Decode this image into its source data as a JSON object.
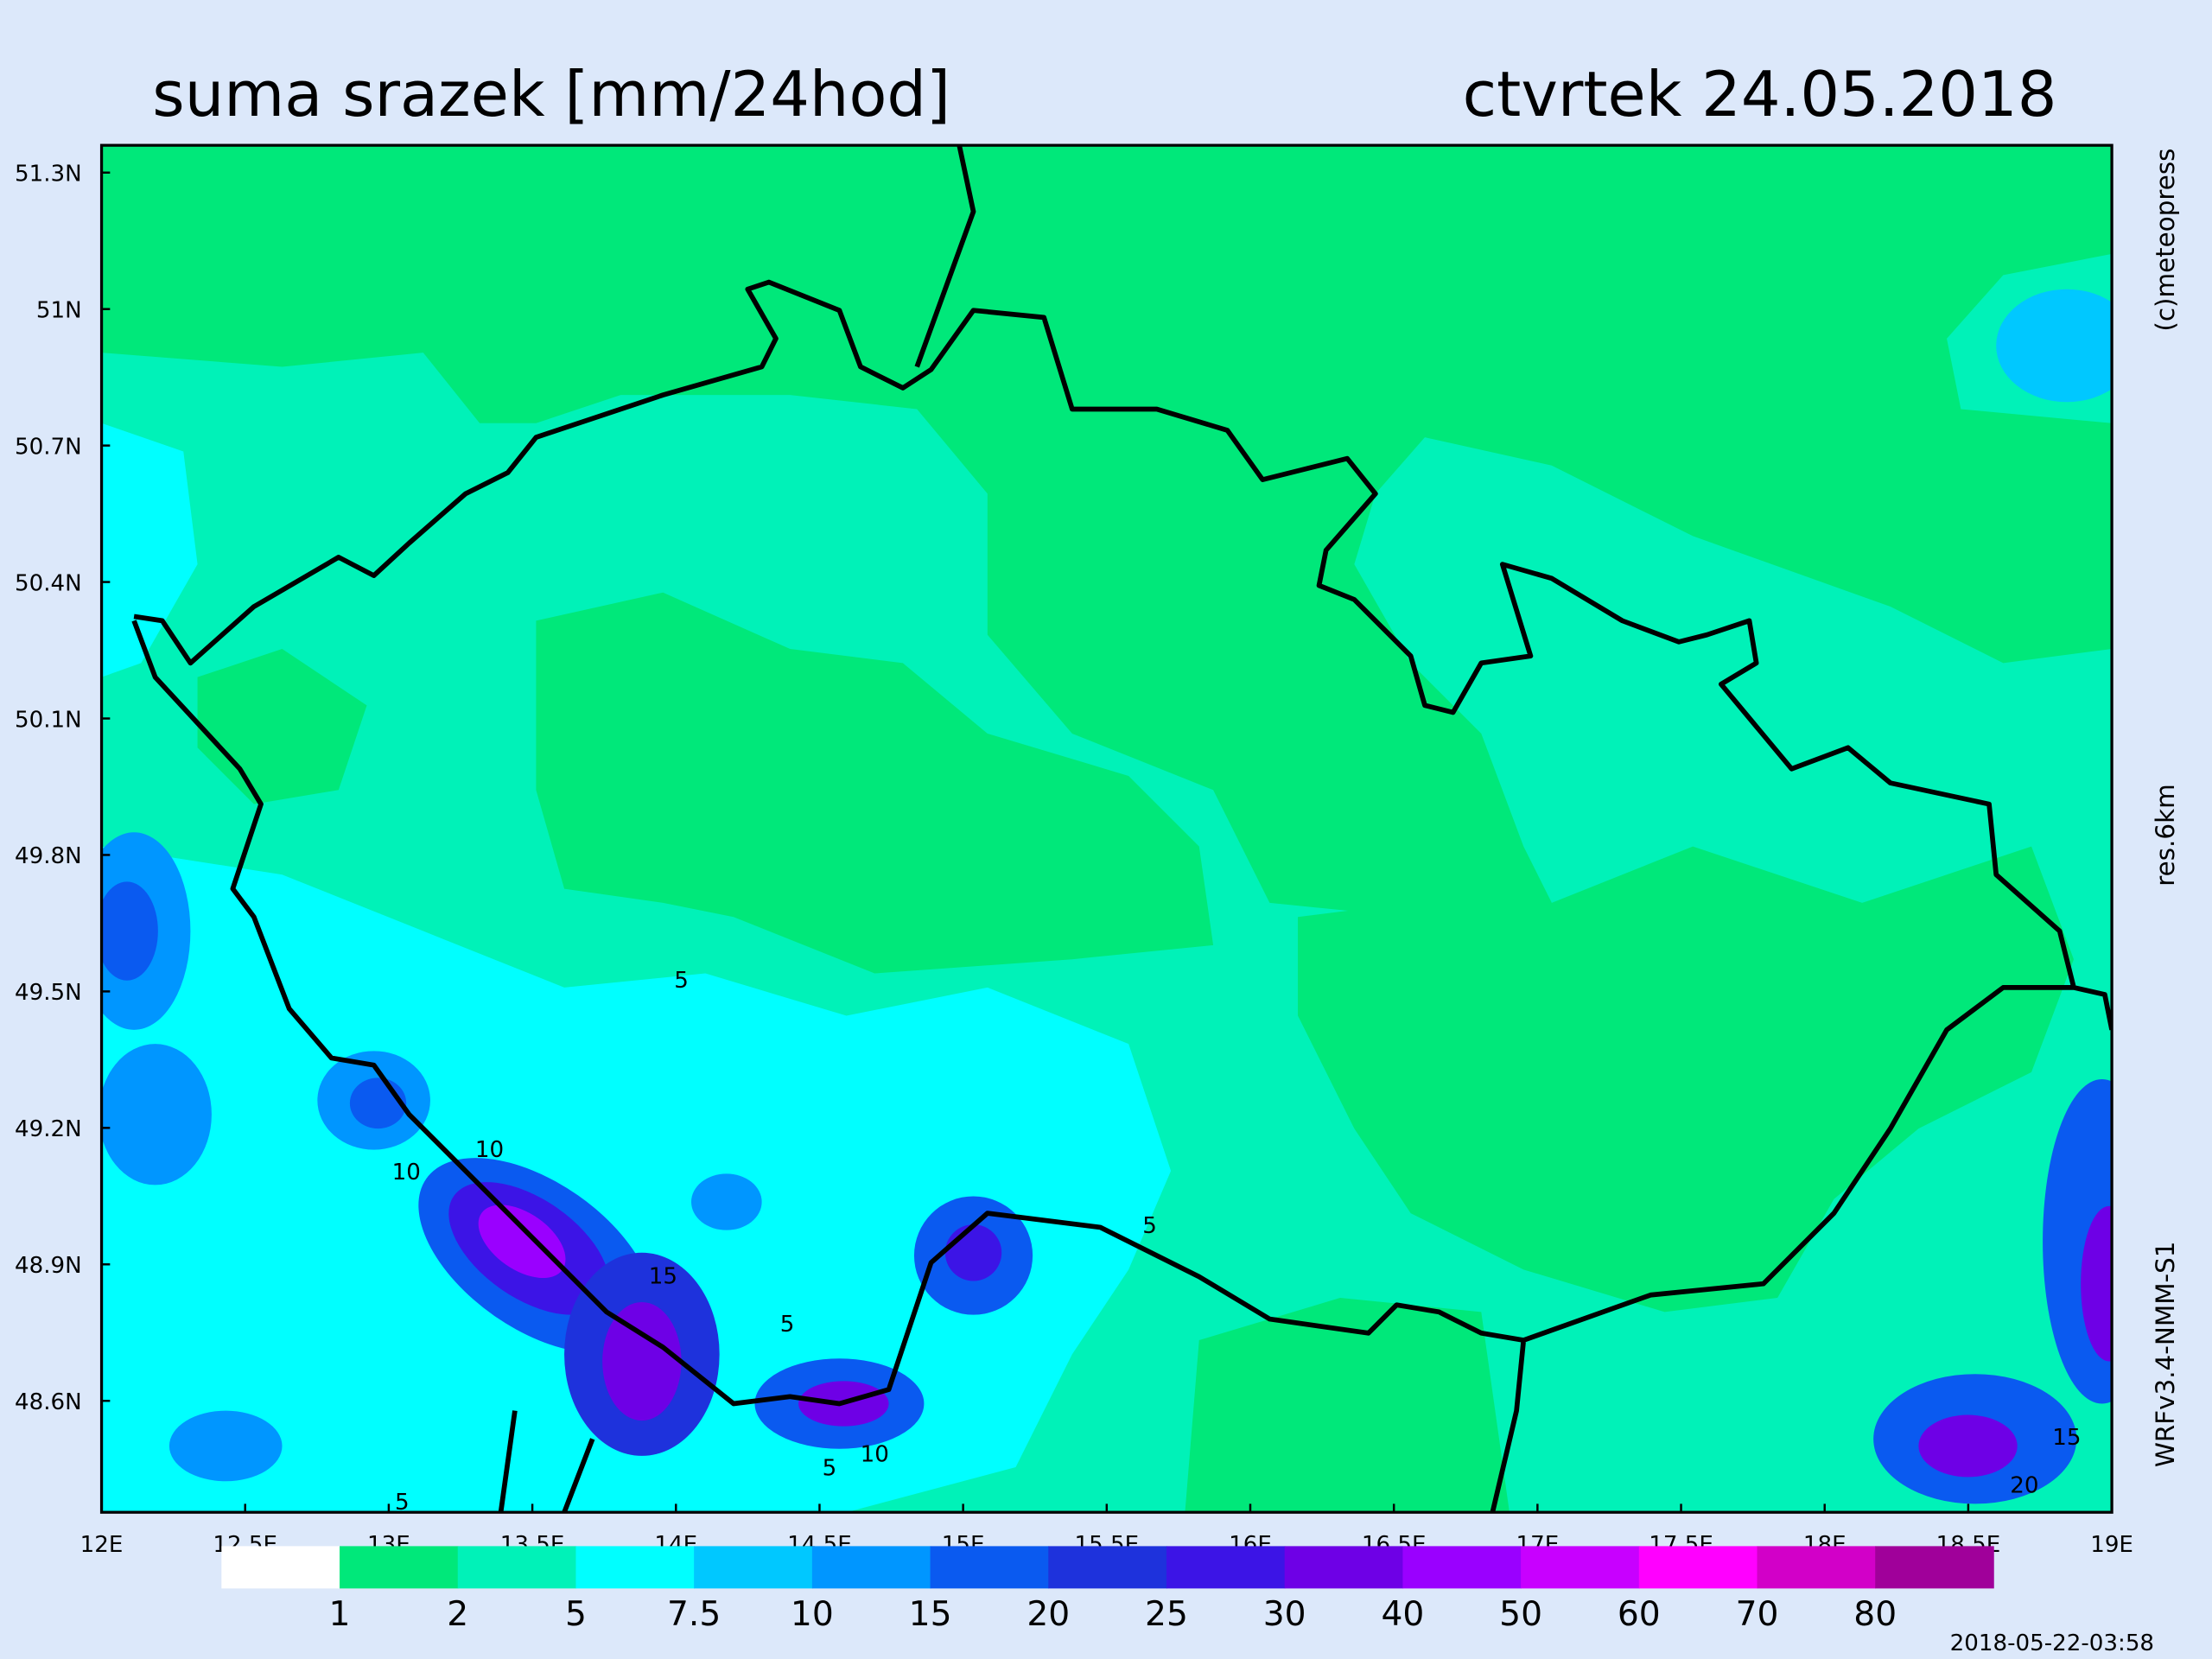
{
  "header": {
    "title": "suma srazek [mm/24hod]",
    "date": "ctvrtek 24.05.2018"
  },
  "map": {
    "lon_range": [
      12,
      19
    ],
    "lat_range": [
      48.355,
      51.36
    ],
    "lon_ticks": [
      {
        "value": 12,
        "label": "12E"
      },
      {
        "value": 12.5,
        "label": "12.5E"
      },
      {
        "value": 13,
        "label": "13E"
      },
      {
        "value": 13.5,
        "label": "13.5E"
      },
      {
        "value": 14,
        "label": "14E"
      },
      {
        "value": 14.5,
        "label": "14.5E"
      },
      {
        "value": 15,
        "label": "15E"
      },
      {
        "value": 15.5,
        "label": "15.5E"
      },
      {
        "value": 16,
        "label": "16E"
      },
      {
        "value": 16.5,
        "label": "16.5E"
      },
      {
        "value": 17,
        "label": "17E"
      },
      {
        "value": 17.5,
        "label": "17.5E"
      },
      {
        "value": 18,
        "label": "18E"
      },
      {
        "value": 18.5,
        "label": "18.5E"
      },
      {
        "value": 19,
        "label": "19E"
      }
    ],
    "lat_ticks": [
      {
        "value": 51.3,
        "label": "51.3N"
      },
      {
        "value": 51,
        "label": "51N"
      },
      {
        "value": 50.7,
        "label": "50.7N"
      },
      {
        "value": 50.4,
        "label": "50.4N"
      },
      {
        "value": 50.1,
        "label": "50.1N"
      },
      {
        "value": 49.8,
        "label": "49.8N"
      },
      {
        "value": 49.5,
        "label": "49.5N"
      },
      {
        "value": 49.2,
        "label": "49.2N"
      },
      {
        "value": 48.9,
        "label": "48.9N"
      },
      {
        "value": 48.6,
        "label": "48.6N"
      }
    ],
    "contour_labels": [
      "5",
      "10",
      "10",
      "15",
      "5",
      "5",
      "10",
      "5",
      "5",
      "15",
      "20"
    ]
  },
  "colorbar": {
    "levels": [
      1,
      2,
      5,
      7.5,
      10,
      15,
      20,
      25,
      30,
      40,
      50,
      60,
      70,
      80
    ],
    "colors": [
      "#ffffff",
      "#00e87a",
      "#00f2b8",
      "#00ffff",
      "#00c8ff",
      "#0096ff",
      "#0a5af0",
      "#1e32dc",
      "#3c14e6",
      "#6e00e6",
      "#9a00ff",
      "#c800ff",
      "#ff00ff",
      "#d200c8",
      "#a0009a"
    ]
  },
  "side_texts": [
    "(c)meteopress",
    "res.6km",
    "WRFv3.4-NMM-S1"
  ],
  "timestamp": "2018-05-22-03:58"
}
